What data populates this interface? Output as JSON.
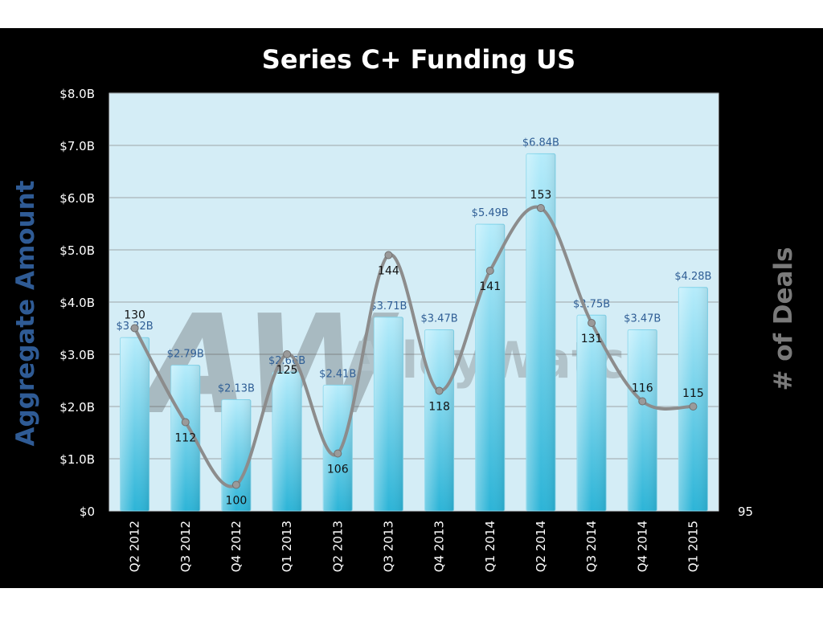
{
  "chart_data": {
    "type": "bar",
    "title": "Series C+  Funding US",
    "ylabel": "Aggregate  Amount",
    "y2label": "# of Deals",
    "watermark": "AlleyWatch",
    "watermark_logo": "AW",
    "categories": [
      "Q2 2012",
      "Q3 2012",
      "Q4 2012",
      "Q1 2013",
      "Q2 2013",
      "Q3 2013",
      "Q4 2013",
      "Q1 2014",
      "Q2 2014",
      "Q3 2014",
      "Q4 2014",
      "Q1 2015"
    ],
    "series": [
      {
        "name": "Aggregate Amount",
        "axis": "left",
        "type": "bar",
        "values": [
          3.32,
          2.79,
          2.13,
          2.66,
          2.41,
          3.71,
          3.47,
          5.49,
          6.84,
          3.75,
          3.47,
          4.28
        ],
        "labels": [
          "$3.32B",
          "$2.79B",
          "$2.13B",
          "$2.66B",
          "$2.41B",
          "$3.71B",
          "$3.47B",
          "$5.49B",
          "$6.84B",
          "$3.75B",
          "$3.47B",
          "$4.28B"
        ]
      },
      {
        "name": "# of Deals",
        "axis": "right",
        "type": "line",
        "values": [
          130,
          112,
          100,
          125,
          106,
          144,
          118,
          141,
          153,
          131,
          116,
          115
        ],
        "labels": [
          "130",
          "112",
          "100",
          "125",
          "106",
          "144",
          "118",
          "141",
          "153",
          "131",
          "116",
          "115"
        ]
      }
    ],
    "ylim": [
      0,
      8
    ],
    "yticks": [
      0,
      1,
      2,
      3,
      4,
      5,
      6,
      7,
      8
    ],
    "ytick_labels": [
      "$0",
      "$1.0B",
      "$2.0B",
      "$3.0B",
      "$4.0B",
      "$5.0B",
      "$6.0B",
      "$7.0B",
      "$8.0B"
    ],
    "y2_bottom": 95,
    "y2_top": 175,
    "y2tick_labels": [
      "95"
    ],
    "grid": true,
    "colors": {
      "plot_bg": "#d4edf6",
      "bar_top": "#b6ecfb",
      "bar_bottom": "#2cb4d7",
      "line": "#8c8c8c",
      "bar_label": "#2f5e95",
      "ylabel": "#2f5b95",
      "y2label": "#7a7a7a",
      "title": "#ffffff",
      "axis_text": "#ffffff"
    }
  }
}
